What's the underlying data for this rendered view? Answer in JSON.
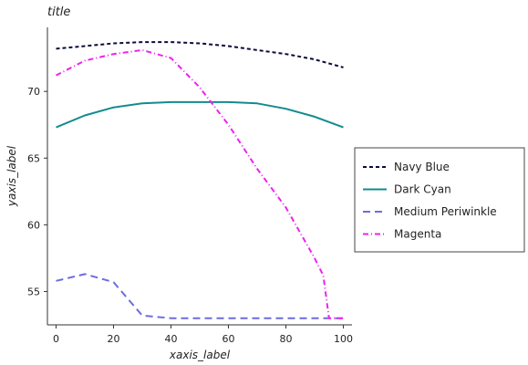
{
  "chart_data": {
    "type": "line",
    "title": "title",
    "xlabel": "xaxis_label",
    "ylabel": "yaxis_label",
    "xlim": [
      -3,
      103
    ],
    "ylim": [
      52.5,
      74.8
    ],
    "x_ticks": [
      0,
      20,
      40,
      60,
      80,
      100
    ],
    "y_ticks": [
      55,
      60,
      65,
      70
    ],
    "grid": false,
    "legend_position": "right",
    "series": [
      {
        "name": "Navy Blue",
        "color": "#0b0c3a",
        "dash": "4,3",
        "x": [
          0,
          10,
          20,
          30,
          40,
          50,
          60,
          70,
          80,
          90,
          100
        ],
        "y": [
          73.2,
          73.4,
          73.6,
          73.7,
          73.7,
          73.6,
          73.4,
          73.1,
          72.8,
          72.4,
          71.8
        ]
      },
      {
        "name": "Dark Cyan",
        "color": "#138b8f",
        "dash": "",
        "x": [
          0,
          10,
          20,
          30,
          40,
          50,
          60,
          70,
          80,
          90,
          100
        ],
        "y": [
          67.3,
          68.2,
          68.8,
          69.1,
          69.2,
          69.2,
          69.2,
          69.1,
          68.7,
          68.1,
          67.3
        ]
      },
      {
        "name": "Medium Periwinkle",
        "color": "#6c6ce0",
        "dash": "8,5",
        "x": [
          0,
          10,
          20,
          30,
          40,
          50,
          60,
          70,
          80,
          90,
          100
        ],
        "y": [
          55.8,
          56.3,
          55.7,
          53.2,
          53.0,
          53.0,
          53.0,
          53.0,
          53.0,
          53.0,
          53.0
        ]
      },
      {
        "name": "Magenta",
        "color": "#ee22ee",
        "dash": "6,3,1,3",
        "x": [
          0,
          10,
          20,
          30,
          40,
          50,
          60,
          70,
          80,
          90,
          93,
          95,
          100
        ],
        "y": [
          71.2,
          72.3,
          72.8,
          73.1,
          72.5,
          70.3,
          67.5,
          64.2,
          61.3,
          57.5,
          56.2,
          53.0,
          53.0
        ]
      }
    ]
  }
}
